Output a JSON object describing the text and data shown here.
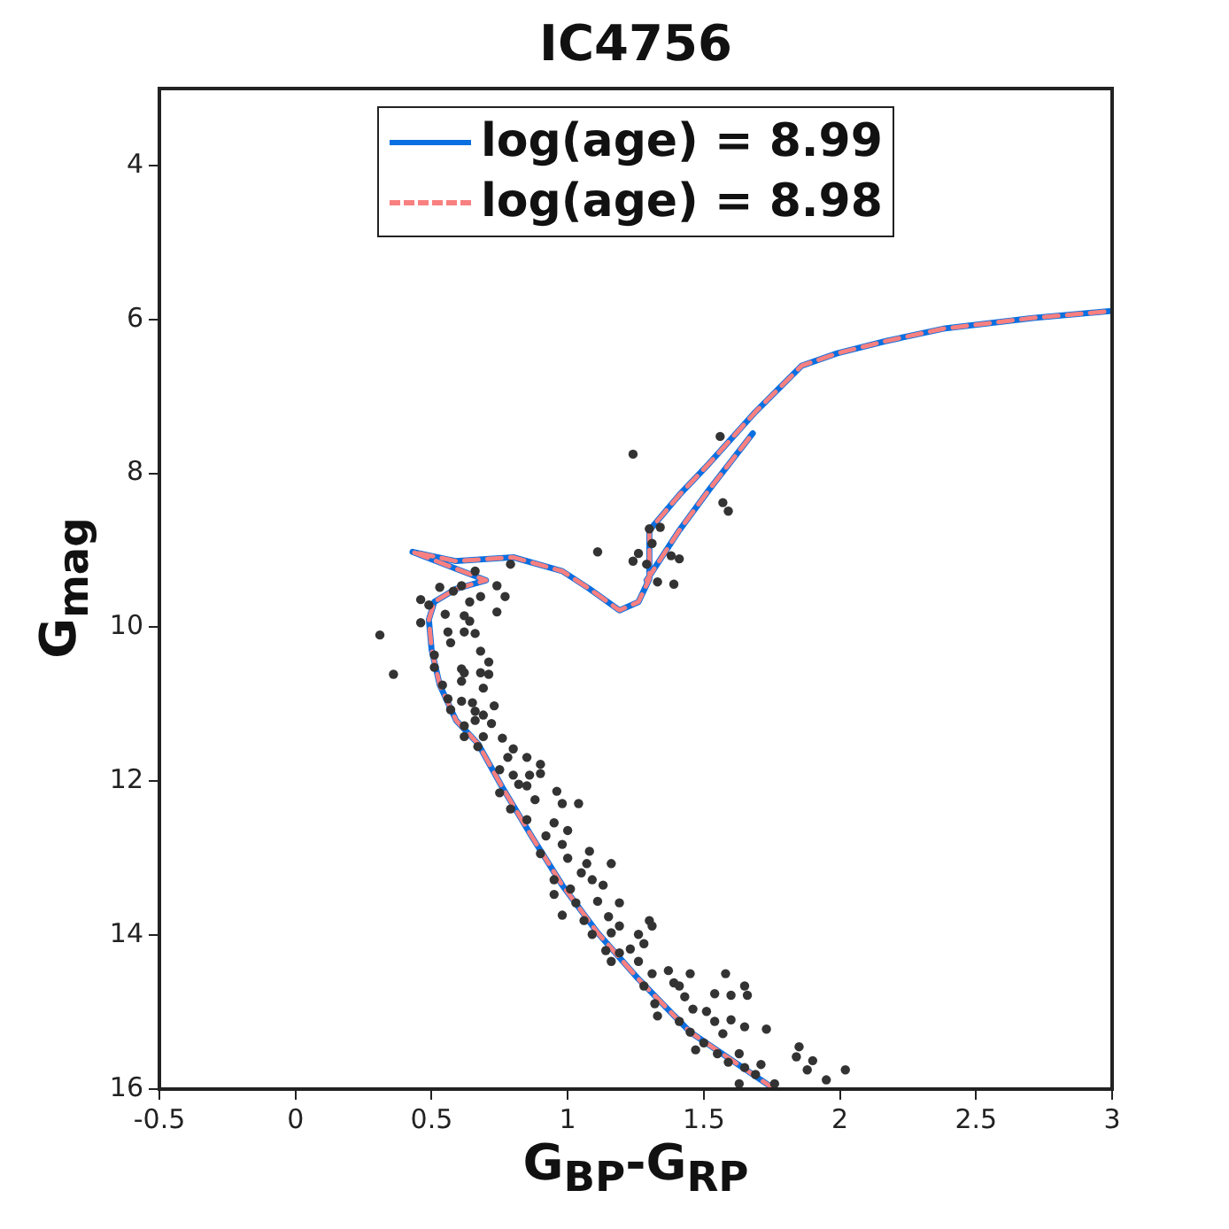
{
  "chart_data": {
    "type": "scatter",
    "title": "IC4756",
    "xlabel": "G$_{BP}$-G$_{RP}$",
    "ylabel": "G$_{mag}$",
    "xlim": [
      -0.5,
      3
    ],
    "ylim": [
      16,
      3
    ],
    "xticks": [
      -0.5,
      0,
      0.5,
      1,
      1.5,
      2,
      2.5,
      3
    ],
    "yticks": [
      4,
      6,
      8,
      10,
      12,
      14,
      16
    ],
    "grid": false,
    "legend": "top",
    "series": [
      {
        "name": "log(age) = 8.99",
        "type": "line",
        "color": "#0a6fe0",
        "line_style": "solid",
        "marker": "none",
        "x": [
          1.76,
          1.45,
          1.26,
          1.11,
          0.98,
          0.87,
          0.76,
          0.67,
          0.59,
          0.53,
          0.5,
          0.49,
          0.51,
          0.59,
          0.7,
          0.43,
          0.59,
          0.8,
          0.98,
          1.08,
          1.19,
          1.26,
          1.3,
          1.3,
          1.41,
          1.52,
          1.69,
          1.86,
          1.99,
          2.17,
          2.38,
          2.71,
          3.0,
          null,
          1.29,
          1.41,
          1.52,
          1.68
        ],
        "values": [
          16.0,
          15.26,
          14.57,
          13.97,
          13.35,
          12.73,
          12.08,
          11.51,
          11.21,
          10.75,
          10.29,
          9.9,
          9.67,
          9.5,
          9.39,
          9.02,
          9.14,
          9.09,
          9.27,
          9.5,
          9.78,
          9.67,
          9.37,
          8.74,
          8.28,
          7.87,
          7.2,
          6.6,
          6.44,
          6.28,
          6.12,
          5.98,
          5.89,
          null,
          9.39,
          8.74,
          8.21,
          7.48
        ]
      },
      {
        "name": "log(age) = 8.98",
        "type": "line",
        "color": "#f88080",
        "line_style": "dashed",
        "marker": "none",
        "x": [
          1.76,
          1.45,
          1.26,
          1.11,
          0.98,
          0.87,
          0.76,
          0.67,
          0.59,
          0.53,
          0.5,
          0.49,
          0.51,
          0.59,
          0.7,
          0.43,
          0.59,
          0.8,
          0.98,
          1.08,
          1.19,
          1.26,
          1.3,
          1.3,
          1.41,
          1.52,
          1.69,
          1.86,
          1.99,
          2.17,
          2.38,
          2.71,
          3.0,
          null,
          1.29,
          1.41,
          1.52,
          1.68
        ],
        "values": [
          16.0,
          15.26,
          14.57,
          13.97,
          13.35,
          12.73,
          12.08,
          11.51,
          11.21,
          10.75,
          10.29,
          9.9,
          9.67,
          9.5,
          9.39,
          9.02,
          9.14,
          9.09,
          9.27,
          9.5,
          9.78,
          9.67,
          9.37,
          8.74,
          8.28,
          7.87,
          7.2,
          6.6,
          6.44,
          6.28,
          6.12,
          5.98,
          5.89,
          null,
          9.39,
          8.74,
          8.21,
          7.48
        ]
      },
      {
        "color": "#333333",
        "marker": "circle",
        "x": [
          1.11,
          1.24,
          0.79,
          0.66,
          0.53,
          0.58,
          0.61,
          0.74,
          0.68,
          0.77,
          0.46,
          0.49,
          0.55,
          0.64,
          0.74,
          0.62,
          0.64,
          0.46,
          0.31,
          0.56,
          0.62,
          0.66,
          0.57,
          0.51,
          0.68,
          0.71,
          0.61,
          0.62,
          0.68,
          0.71,
          0.36,
          0.51,
          0.54,
          0.61,
          0.69,
          0.56,
          0.61,
          0.65,
          0.73,
          0.57,
          0.66,
          0.69,
          0.66,
          0.72,
          0.62,
          0.62,
          0.69,
          0.76,
          0.8,
          0.67,
          0.85,
          0.9,
          0.78,
          0.75,
          0.8,
          0.86,
          0.9,
          0.85,
          0.96,
          0.75,
          0.98,
          1.04,
          0.88,
          0.82,
          0.79,
          0.85,
          0.95,
          1.0,
          0.92,
          0.98,
          1.08,
          0.9,
          1.0,
          1.16,
          1.07,
          1.05,
          0.95,
          1.09,
          1.13,
          1.01,
          0.95,
          1.19,
          1.11,
          1.03,
          1.15,
          0.98,
          1.06,
          1.3,
          1.31,
          1.19,
          1.16,
          1.26,
          1.28,
          1.09,
          1.14,
          1.19,
          1.23,
          1.16,
          1.26,
          1.37,
          1.45,
          1.31,
          1.58,
          1.28,
          1.39,
          1.41,
          1.65,
          1.66,
          1.54,
          1.43,
          1.6,
          1.32,
          1.46,
          1.51,
          1.33,
          1.41,
          1.54,
          1.6,
          1.65,
          1.73,
          1.45,
          1.57,
          1.5,
          1.47,
          1.55,
          1.63,
          1.59,
          1.71,
          1.85,
          1.84,
          1.9,
          1.88,
          2.02,
          1.65,
          1.69,
          1.76,
          1.95,
          1.63,
          1.56,
          1.24,
          1.57,
          1.59,
          1.3,
          1.34,
          1.31,
          1.26,
          1.29,
          1.38,
          1.41,
          1.33,
          1.39
        ],
        "values": [
          9.02,
          9.14,
          9.18,
          9.27,
          9.48,
          9.53,
          9.46,
          9.46,
          9.6,
          9.6,
          9.64,
          9.71,
          9.83,
          9.67,
          9.8,
          9.85,
          9.92,
          9.94,
          10.1,
          10.06,
          10.06,
          10.08,
          10.2,
          10.36,
          10.31,
          10.45,
          10.54,
          10.59,
          10.59,
          10.61,
          10.61,
          10.52,
          10.75,
          10.7,
          10.79,
          10.93,
          10.96,
          10.98,
          11.02,
          11.07,
          11.09,
          11.14,
          11.21,
          11.25,
          11.28,
          11.42,
          11.42,
          11.44,
          11.58,
          11.55,
          11.69,
          11.78,
          11.69,
          11.85,
          11.92,
          11.92,
          11.9,
          12.06,
          12.13,
          12.15,
          12.29,
          12.29,
          12.24,
          12.04,
          12.36,
          12.5,
          12.54,
          12.64,
          12.71,
          12.82,
          12.91,
          12.94,
          13.0,
          13.07,
          13.07,
          13.19,
          13.28,
          13.28,
          13.35,
          13.4,
          13.47,
          13.58,
          13.56,
          13.58,
          13.76,
          13.74,
          13.81,
          13.81,
          13.88,
          13.88,
          13.97,
          13.99,
          14.11,
          13.99,
          14.2,
          14.23,
          14.18,
          14.34,
          14.34,
          14.46,
          14.5,
          14.5,
          14.5,
          14.66,
          14.62,
          14.66,
          14.66,
          14.78,
          14.76,
          14.8,
          14.78,
          14.89,
          14.96,
          14.99,
          15.05,
          15.12,
          15.12,
          15.1,
          15.19,
          15.22,
          15.26,
          15.28,
          15.4,
          15.49,
          15.54,
          15.54,
          15.65,
          15.68,
          15.45,
          15.58,
          15.63,
          15.75,
          15.75,
          15.72,
          15.81,
          15.93,
          15.88,
          15.93,
          7.52,
          7.75,
          8.38,
          8.49,
          8.72,
          8.7,
          8.91,
          9.04,
          9.18,
          9.07,
          9.11,
          9.41,
          9.44
        ]
      }
    ]
  }
}
